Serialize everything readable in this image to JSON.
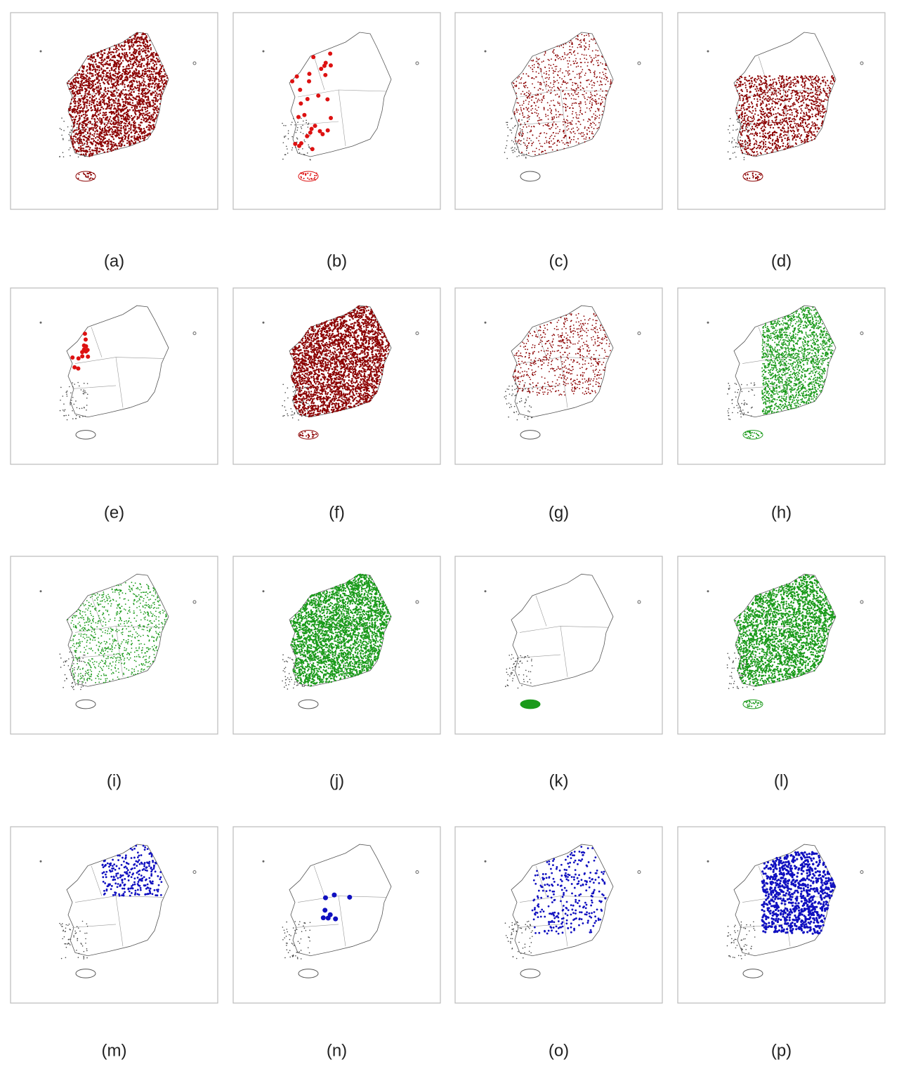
{
  "panels": [
    {
      "label": "(a)",
      "color": "#8b0000"
    },
    {
      "label": "(b)",
      "color": "#dd1111"
    },
    {
      "label": "(c)",
      "color": "#8b0000"
    },
    {
      "label": "(d)",
      "color": "#8b0000"
    },
    {
      "label": "(e)",
      "color": "#dd1111"
    },
    {
      "label": "(f)",
      "color": "#8b0000"
    },
    {
      "label": "(g)",
      "color": "#8b0000"
    },
    {
      "label": "(h)",
      "color": "#1a9a1a"
    },
    {
      "label": "(i)",
      "color": "#1a9a1a"
    },
    {
      "label": "(j)",
      "color": "#1a9a1a"
    },
    {
      "label": "(k)",
      "color": "#1a9a1a"
    },
    {
      "label": "(l)",
      "color": "#1a9a1a"
    },
    {
      "label": "(m)",
      "color": "#1010c0"
    },
    {
      "label": "(n)",
      "color": "#1010c0"
    },
    {
      "label": "(o)",
      "color": "#1010c0"
    },
    {
      "label": "(p)",
      "color": "#1010c0"
    }
  ]
}
